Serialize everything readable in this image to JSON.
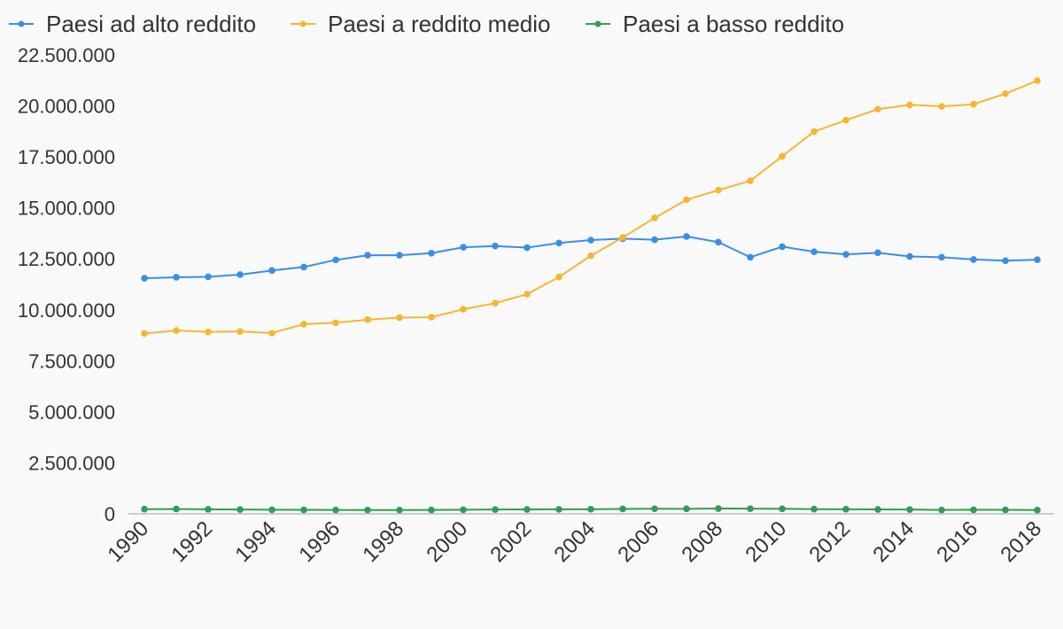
{
  "chart_data": {
    "type": "line",
    "title": "",
    "xlabel": "",
    "ylabel": "",
    "x": [
      1990,
      1991,
      1992,
      1993,
      1994,
      1995,
      1996,
      1997,
      1998,
      1999,
      2000,
      2001,
      2002,
      2003,
      2004,
      2005,
      2006,
      2007,
      2008,
      2009,
      2010,
      2011,
      2012,
      2013,
      2014,
      2015,
      2016,
      2017,
      2018
    ],
    "x_tick_labels": [
      "1990",
      "1992",
      "1994",
      "1996",
      "1998",
      "2000",
      "2002",
      "2004",
      "2006",
      "2008",
      "2010",
      "2012",
      "2014",
      "2016",
      "2018"
    ],
    "y_tick_labels": [
      "0",
      "2.500.000",
      "5.000.000",
      "7.500.000",
      "10.000.000",
      "12.500.000",
      "15.000.000",
      "17.500.000",
      "20.000.000",
      "22.500.000"
    ],
    "ylim": [
      0,
      22500000
    ],
    "grid": false,
    "legend_position": "top-left",
    "series": [
      {
        "name": "Paesi ad alto reddito",
        "color": "#3b8ee8",
        "values": [
          11550000,
          11600000,
          11620000,
          11730000,
          11930000,
          12100000,
          12450000,
          12680000,
          12680000,
          12780000,
          13070000,
          13130000,
          13050000,
          13280000,
          13420000,
          13490000,
          13440000,
          13600000,
          13320000,
          12580000,
          13100000,
          12850000,
          12720000,
          12800000,
          12620000,
          12580000,
          12470000,
          12410000,
          12460000
        ]
      },
      {
        "name": "Paesi a reddito medio",
        "color": "#f5b731",
        "values": [
          8840000,
          8990000,
          8920000,
          8940000,
          8860000,
          9300000,
          9370000,
          9520000,
          9620000,
          9640000,
          10030000,
          10330000,
          10770000,
          11610000,
          12650000,
          13550000,
          14510000,
          15400000,
          15870000,
          16330000,
          17530000,
          18740000,
          19300000,
          19840000,
          20050000,
          19980000,
          20080000,
          20600000,
          21240000
        ]
      },
      {
        "name": "Paesi a basso reddito",
        "color": "#2f9e55",
        "values": [
          230000,
          235000,
          220000,
          210000,
          200000,
          195000,
          190000,
          185000,
          185000,
          190000,
          200000,
          210000,
          215000,
          220000,
          225000,
          240000,
          250000,
          245000,
          260000,
          255000,
          245000,
          230000,
          225000,
          215000,
          210000,
          190000,
          200000,
          195000,
          185000
        ]
      }
    ]
  }
}
